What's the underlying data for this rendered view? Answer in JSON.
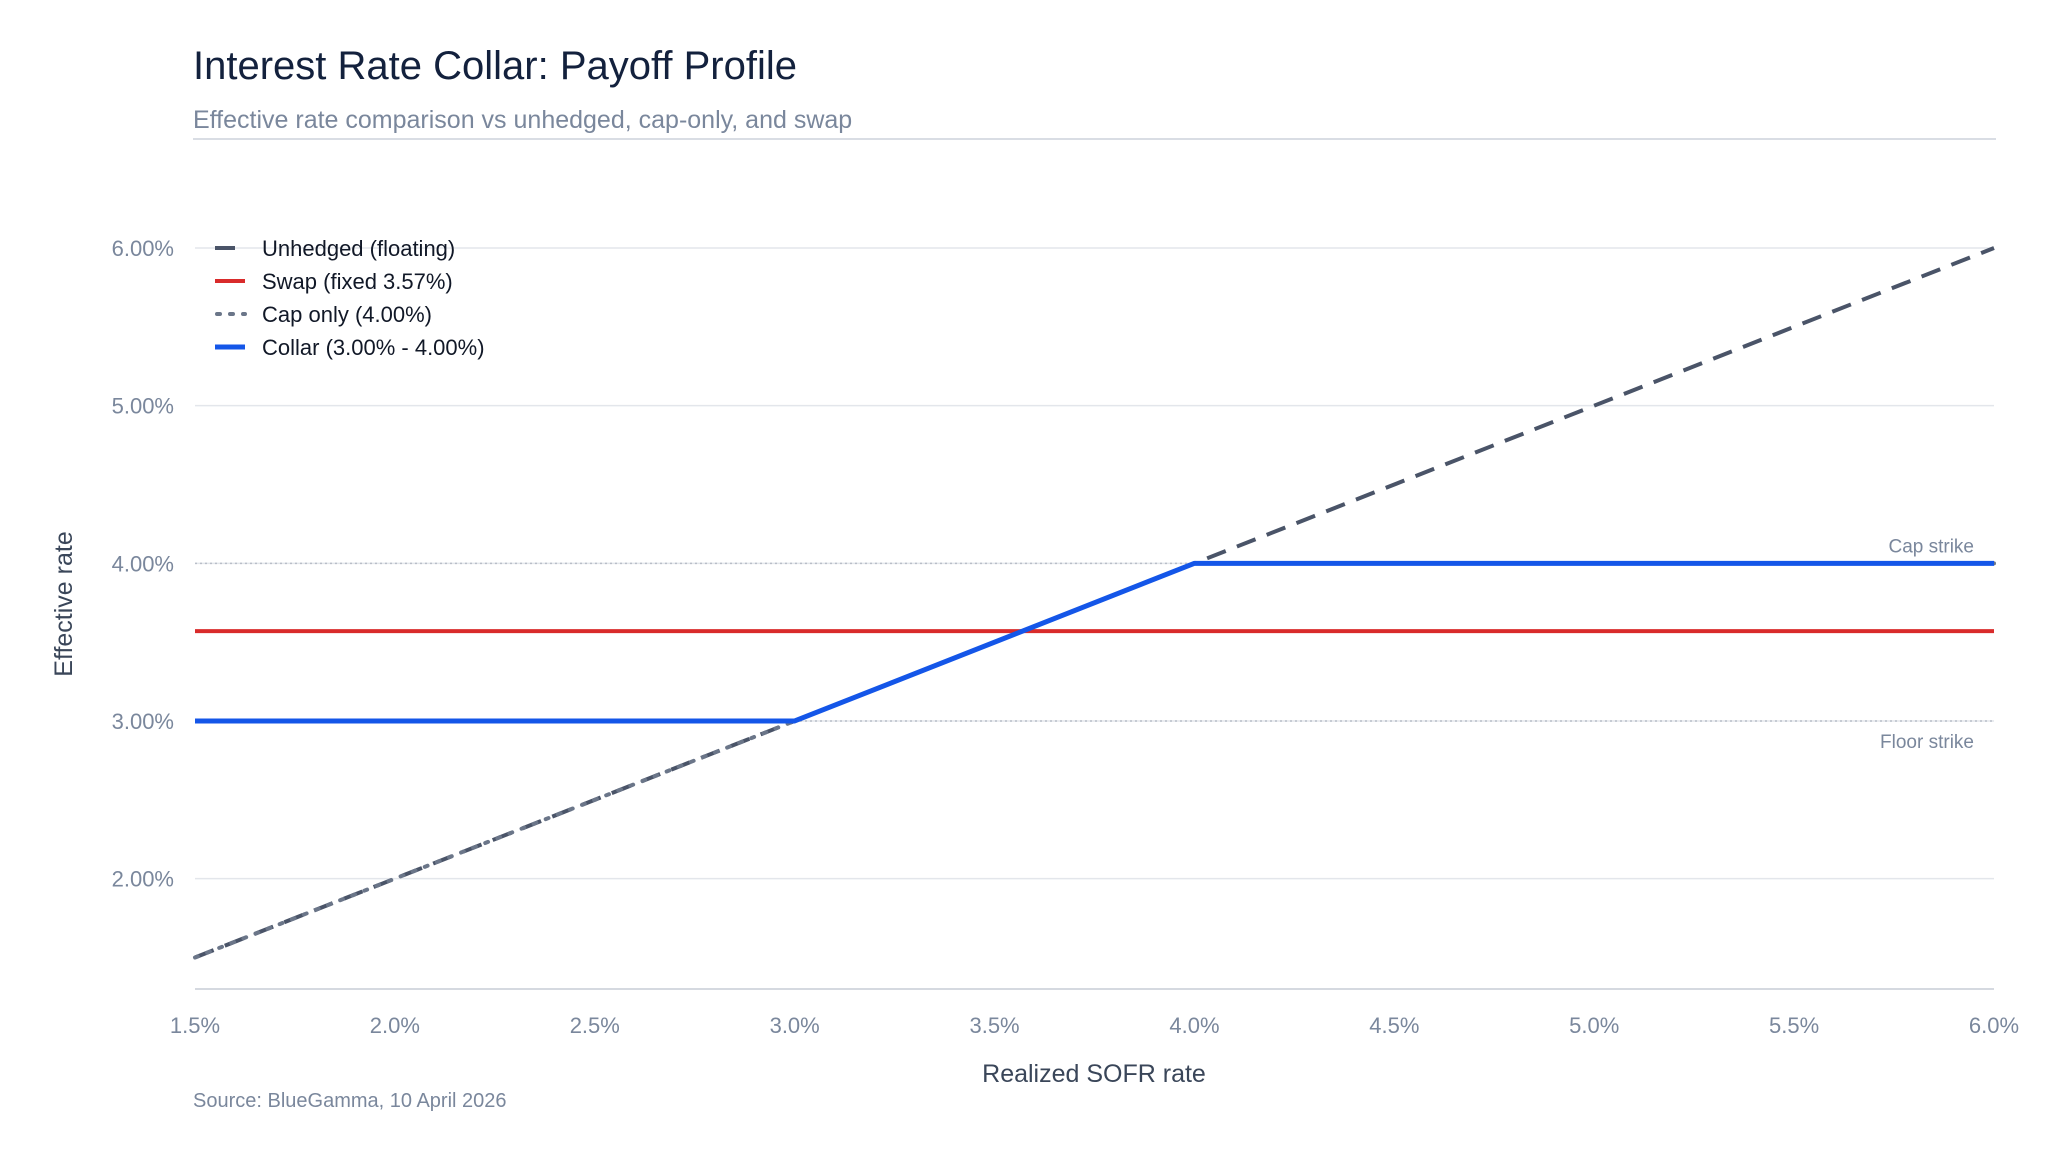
{
  "chart_data": {
    "type": "line",
    "title": "Interest Rate Collar: Payoff Profile",
    "subtitle": "Effective rate comparison vs unhedged, cap-only, and swap",
    "xlabel": "Realized SOFR rate",
    "ylabel": "Effective rate",
    "xlim": [
      1.5,
      6.0
    ],
    "ylim": [
      1.3,
      6.0
    ],
    "x_ticks": [
      "1.5%",
      "2.0%",
      "2.5%",
      "3.0%",
      "3.5%",
      "4.0%",
      "4.5%",
      "5.0%",
      "5.5%",
      "6.0%"
    ],
    "x_tick_values": [
      1.5,
      2.0,
      2.5,
      3.0,
      3.5,
      4.0,
      4.5,
      5.0,
      5.5,
      6.0
    ],
    "y_ticks": [
      "2.00%",
      "3.00%",
      "4.00%",
      "5.00%",
      "6.00%"
    ],
    "y_tick_values": [
      2.0,
      3.0,
      4.0,
      5.0,
      6.0
    ],
    "grid": true,
    "legend_position": "top-left",
    "series": [
      {
        "name": "Unhedged (floating)",
        "style": "dashed",
        "color": "#4a5468",
        "x": [
          1.5,
          6.0
        ],
        "y": [
          1.5,
          6.0
        ]
      },
      {
        "name": "Swap (fixed 3.57%)",
        "style": "solid",
        "color": "#d92b2b",
        "x": [
          1.5,
          6.0
        ],
        "y": [
          3.57,
          3.57
        ]
      },
      {
        "name": "Cap only (4.00%)",
        "style": "dotted",
        "color": "#6b7689",
        "x": [
          1.5,
          4.0,
          6.0
        ],
        "y": [
          1.5,
          4.0,
          4.0
        ]
      },
      {
        "name": "Collar (3.00% - 4.00%)",
        "style": "solid",
        "color": "#1456e8",
        "x": [
          1.5,
          3.0,
          4.0,
          6.0
        ],
        "y": [
          3.0,
          3.0,
          4.0,
          4.0
        ]
      }
    ],
    "reference_lines": [
      {
        "label": "Cap strike",
        "y": 4.0
      },
      {
        "label": "Floor strike",
        "y": 3.0
      }
    ],
    "source": "Source: BlueGamma, 10 April 2026"
  }
}
